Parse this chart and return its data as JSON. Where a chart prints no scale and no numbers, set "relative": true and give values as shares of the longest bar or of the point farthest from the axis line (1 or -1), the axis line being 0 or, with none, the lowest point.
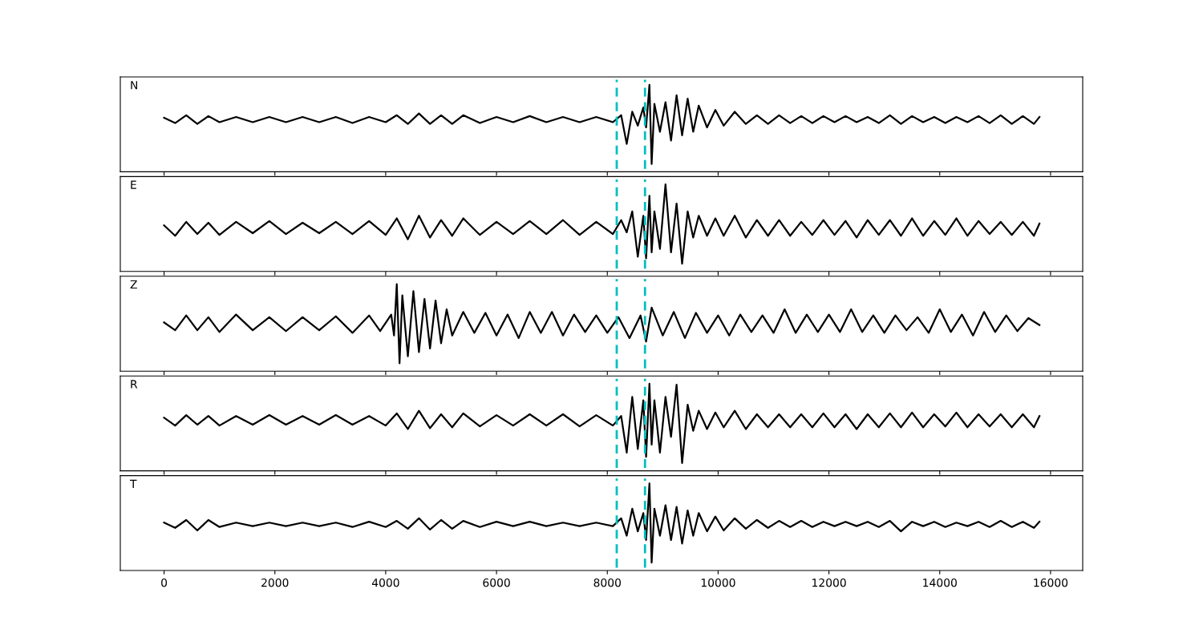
{
  "chart_data": [
    {
      "type": "line",
      "relative": true,
      "xlim": [
        -790,
        16580
      ],
      "xticks": [
        0,
        2000,
        4000,
        6000,
        8000,
        10000,
        12000,
        14000,
        16000
      ],
      "tick_labels": false,
      "grid": false,
      "legend": false,
      "ref_lines": [
        {
          "axis": "x",
          "value": 8170,
          "color": "#00bfbf",
          "line_style": "dashed"
        },
        {
          "axis": "x",
          "value": 8680,
          "color": "#00bfbf",
          "line_style": "dashed"
        }
      ],
      "series": [
        {
          "name": "N",
          "color": "#000000",
          "x": [
            0,
            200,
            400,
            600,
            800,
            1000,
            1300,
            1600,
            1900,
            2200,
            2500,
            2800,
            3100,
            3400,
            3700,
            4000,
            4200,
            4400,
            4600,
            4800,
            5000,
            5200,
            5400,
            5700,
            6000,
            6300,
            6600,
            6900,
            7200,
            7500,
            7800,
            8100,
            8250,
            8350,
            8450,
            8550,
            8650,
            8700,
            8760,
            8800,
            8850,
            8950,
            9050,
            9150,
            9250,
            9350,
            9450,
            9550,
            9650,
            9800,
            9950,
            10100,
            10300,
            10500,
            10700,
            10900,
            11100,
            11300,
            11500,
            11700,
            11900,
            12100,
            12300,
            12500,
            12700,
            12900,
            13100,
            13300,
            13500,
            13700,
            13900,
            14100,
            14300,
            14500,
            14700,
            14900,
            15100,
            15300,
            15500,
            15700,
            15800
          ],
          "values": [
            0.62,
            0.56,
            0.65,
            0.55,
            0.64,
            0.57,
            0.63,
            0.57,
            0.63,
            0.57,
            0.63,
            0.57,
            0.63,
            0.56,
            0.63,
            0.57,
            0.65,
            0.55,
            0.67,
            0.55,
            0.65,
            0.55,
            0.65,
            0.56,
            0.63,
            0.57,
            0.64,
            0.57,
            0.63,
            0.57,
            0.63,
            0.57,
            0.65,
            0.32,
            0.69,
            0.53,
            0.74,
            0.51,
            1.0,
            0.09,
            0.78,
            0.46,
            0.8,
            0.36,
            0.88,
            0.42,
            0.84,
            0.46,
            0.76,
            0.51,
            0.71,
            0.53,
            0.69,
            0.55,
            0.65,
            0.55,
            0.65,
            0.56,
            0.64,
            0.56,
            0.64,
            0.57,
            0.64,
            0.57,
            0.63,
            0.56,
            0.65,
            0.55,
            0.64,
            0.57,
            0.63,
            0.56,
            0.63,
            0.57,
            0.64,
            0.56,
            0.65,
            0.55,
            0.64,
            0.55,
            0.63
          ]
        }
      ]
    },
    {
      "type": "line",
      "relative": true,
      "xlim": [
        -790,
        16580
      ],
      "xticks": [
        0,
        2000,
        4000,
        6000,
        8000,
        10000,
        12000,
        14000,
        16000
      ],
      "tick_labels": false,
      "grid": false,
      "legend": false,
      "ref_lines": [
        {
          "axis": "x",
          "value": 8170,
          "color": "#00bfbf",
          "line_style": "dashed"
        },
        {
          "axis": "x",
          "value": 8680,
          "color": "#00bfbf",
          "line_style": "dashed"
        }
      ],
      "series": [
        {
          "name": "E",
          "color": "#000000",
          "x": [
            0,
            200,
            400,
            600,
            800,
            1000,
            1300,
            1600,
            1900,
            2200,
            2500,
            2800,
            3100,
            3400,
            3700,
            4000,
            4200,
            4400,
            4600,
            4800,
            5000,
            5200,
            5400,
            5700,
            6000,
            6300,
            6600,
            6900,
            7200,
            7500,
            7800,
            8100,
            8250,
            8350,
            8450,
            8550,
            8650,
            8700,
            8760,
            8800,
            8850,
            8950,
            9050,
            9150,
            9250,
            9350,
            9450,
            9550,
            9650,
            9800,
            9950,
            10100,
            10300,
            10500,
            10700,
            10900,
            11100,
            11300,
            11500,
            11700,
            11900,
            12100,
            12300,
            12500,
            12700,
            12900,
            13100,
            13300,
            13500,
            13700,
            13900,
            14100,
            14300,
            14500,
            14700,
            14900,
            15100,
            15300,
            15500,
            15700,
            15800
          ],
          "values": [
            0.53,
            0.41,
            0.57,
            0.43,
            0.56,
            0.42,
            0.57,
            0.44,
            0.58,
            0.43,
            0.56,
            0.44,
            0.57,
            0.43,
            0.58,
            0.42,
            0.61,
            0.37,
            0.64,
            0.39,
            0.59,
            0.41,
            0.61,
            0.42,
            0.57,
            0.43,
            0.58,
            0.43,
            0.59,
            0.42,
            0.57,
            0.43,
            0.59,
            0.45,
            0.69,
            0.17,
            0.64,
            0.15,
            0.87,
            0.22,
            0.69,
            0.26,
            1.0,
            0.22,
            0.78,
            0.09,
            0.69,
            0.39,
            0.64,
            0.41,
            0.61,
            0.41,
            0.64,
            0.39,
            0.59,
            0.41,
            0.59,
            0.41,
            0.57,
            0.42,
            0.59,
            0.42,
            0.58,
            0.39,
            0.59,
            0.42,
            0.59,
            0.41,
            0.61,
            0.41,
            0.58,
            0.42,
            0.61,
            0.41,
            0.58,
            0.43,
            0.57,
            0.42,
            0.57,
            0.41,
            0.55
          ]
        }
      ]
    },
    {
      "type": "line",
      "relative": true,
      "xlim": [
        -790,
        16580
      ],
      "xticks": [
        0,
        2000,
        4000,
        6000,
        8000,
        10000,
        12000,
        14000,
        16000
      ],
      "tick_labels": false,
      "grid": false,
      "legend": false,
      "ref_lines": [
        {
          "axis": "x",
          "value": 8170,
          "color": "#00bfbf",
          "line_style": "dashed"
        },
        {
          "axis": "x",
          "value": 8680,
          "color": "#00bfbf",
          "line_style": "dashed"
        }
      ],
      "series": [
        {
          "name": "Z",
          "color": "#000000",
          "x": [
            0,
            200,
            400,
            600,
            800,
            1000,
            1300,
            1600,
            1900,
            2200,
            2500,
            2800,
            3100,
            3400,
            3700,
            3900,
            4100,
            4150,
            4200,
            4250,
            4300,
            4400,
            4500,
            4600,
            4700,
            4800,
            4900,
            5000,
            5100,
            5200,
            5400,
            5600,
            5800,
            6000,
            6200,
            6400,
            6600,
            6800,
            7000,
            7200,
            7400,
            7600,
            7800,
            8000,
            8200,
            8400,
            8600,
            8700,
            8800,
            9000,
            9200,
            9400,
            9600,
            9800,
            10000,
            10200,
            10400,
            10600,
            10800,
            11000,
            11200,
            11400,
            11600,
            11800,
            12000,
            12200,
            12400,
            12600,
            12800,
            13000,
            13200,
            13400,
            13600,
            13800,
            14000,
            14200,
            14400,
            14600,
            14800,
            15000,
            15200,
            15400,
            15600,
            15800
          ],
          "values": [
            0.56,
            0.47,
            0.64,
            0.47,
            0.62,
            0.45,
            0.65,
            0.47,
            0.62,
            0.46,
            0.62,
            0.47,
            0.63,
            0.44,
            0.64,
            0.46,
            0.65,
            0.41,
            1.0,
            0.09,
            0.87,
            0.17,
            0.92,
            0.22,
            0.83,
            0.26,
            0.81,
            0.32,
            0.71,
            0.41,
            0.68,
            0.44,
            0.67,
            0.41,
            0.65,
            0.38,
            0.68,
            0.44,
            0.68,
            0.41,
            0.65,
            0.45,
            0.64,
            0.44,
            0.62,
            0.38,
            0.64,
            0.34,
            0.73,
            0.41,
            0.68,
            0.38,
            0.67,
            0.44,
            0.64,
            0.41,
            0.65,
            0.45,
            0.64,
            0.44,
            0.71,
            0.44,
            0.65,
            0.45,
            0.65,
            0.45,
            0.71,
            0.45,
            0.64,
            0.44,
            0.64,
            0.47,
            0.62,
            0.44,
            0.71,
            0.45,
            0.65,
            0.41,
            0.68,
            0.45,
            0.64,
            0.46,
            0.61,
            0.53
          ]
        }
      ]
    },
    {
      "type": "line",
      "relative": true,
      "xlim": [
        -790,
        16580
      ],
      "xticks": [
        0,
        2000,
        4000,
        6000,
        8000,
        10000,
        12000,
        14000,
        16000
      ],
      "tick_labels": false,
      "grid": false,
      "legend": false,
      "ref_lines": [
        {
          "axis": "x",
          "value": 8170,
          "color": "#00bfbf",
          "line_style": "dashed"
        },
        {
          "axis": "x",
          "value": 8680,
          "color": "#00bfbf",
          "line_style": "dashed"
        }
      ],
      "series": [
        {
          "name": "R",
          "color": "#000000",
          "x": [
            0,
            200,
            400,
            600,
            800,
            1000,
            1300,
            1600,
            1900,
            2200,
            2500,
            2800,
            3100,
            3400,
            3700,
            4000,
            4200,
            4400,
            4600,
            4800,
            5000,
            5200,
            5400,
            5700,
            6000,
            6300,
            6600,
            6900,
            7200,
            7500,
            7800,
            8100,
            8250,
            8350,
            8450,
            8550,
            8650,
            8700,
            8760,
            8800,
            8850,
            8950,
            9050,
            9150,
            9250,
            9350,
            9450,
            9550,
            9650,
            9800,
            9950,
            10100,
            10300,
            10500,
            10700,
            10900,
            11100,
            11300,
            11500,
            11700,
            11900,
            12100,
            12300,
            12500,
            12700,
            12900,
            13100,
            13300,
            13500,
            13700,
            13900,
            14100,
            14300,
            14500,
            14700,
            14900,
            15100,
            15300,
            15500,
            15700,
            15800
          ],
          "values": [
            0.61,
            0.52,
            0.64,
            0.53,
            0.63,
            0.52,
            0.63,
            0.53,
            0.64,
            0.53,
            0.63,
            0.53,
            0.64,
            0.53,
            0.63,
            0.52,
            0.66,
            0.48,
            0.69,
            0.49,
            0.65,
            0.5,
            0.66,
            0.51,
            0.64,
            0.52,
            0.65,
            0.52,
            0.65,
            0.51,
            0.64,
            0.52,
            0.63,
            0.21,
            0.85,
            0.25,
            0.81,
            0.16,
            1.0,
            0.3,
            0.81,
            0.21,
            0.85,
            0.39,
            0.99,
            0.09,
            0.76,
            0.46,
            0.69,
            0.48,
            0.67,
            0.5,
            0.69,
            0.48,
            0.65,
            0.5,
            0.65,
            0.5,
            0.65,
            0.5,
            0.66,
            0.5,
            0.65,
            0.48,
            0.65,
            0.5,
            0.66,
            0.5,
            0.67,
            0.5,
            0.65,
            0.51,
            0.67,
            0.5,
            0.65,
            0.51,
            0.65,
            0.5,
            0.65,
            0.5,
            0.63
          ]
        }
      ]
    },
    {
      "type": "line",
      "relative": true,
      "xlim": [
        -790,
        16580
      ],
      "xticks": [
        0,
        2000,
        4000,
        6000,
        8000,
        10000,
        12000,
        14000,
        16000
      ],
      "tick_labels": "x",
      "grid": false,
      "legend": false,
      "ref_lines": [
        {
          "axis": "x",
          "value": 8170,
          "color": "#00bfbf",
          "line_style": "dashed"
        },
        {
          "axis": "x",
          "value": 8680,
          "color": "#00bfbf",
          "line_style": "dashed"
        }
      ],
      "series": [
        {
          "name": "T",
          "color": "#000000",
          "x": [
            0,
            200,
            400,
            600,
            800,
            1000,
            1300,
            1600,
            1900,
            2200,
            2500,
            2800,
            3100,
            3400,
            3700,
            4000,
            4200,
            4400,
            4600,
            4800,
            5000,
            5200,
            5400,
            5700,
            6000,
            6300,
            6600,
            6900,
            7200,
            7500,
            7800,
            8100,
            8250,
            8350,
            8450,
            8550,
            8650,
            8700,
            8760,
            8800,
            8850,
            8950,
            9050,
            9150,
            9250,
            9350,
            9450,
            9550,
            9650,
            9800,
            9950,
            10100,
            10300,
            10500,
            10700,
            10900,
            11100,
            11300,
            11500,
            11700,
            11900,
            12100,
            12300,
            12500,
            12700,
            12900,
            13100,
            13300,
            13500,
            13700,
            13900,
            14100,
            14300,
            14500,
            14700,
            14900,
            15100,
            15300,
            15500,
            15700,
            15800
          ],
          "values": [
            0.55,
            0.49,
            0.58,
            0.46,
            0.58,
            0.5,
            0.55,
            0.51,
            0.55,
            0.51,
            0.55,
            0.51,
            0.55,
            0.5,
            0.56,
            0.5,
            0.57,
            0.48,
            0.6,
            0.47,
            0.58,
            0.48,
            0.57,
            0.5,
            0.56,
            0.51,
            0.56,
            0.51,
            0.55,
            0.51,
            0.55,
            0.51,
            0.6,
            0.4,
            0.71,
            0.45,
            0.66,
            0.35,
            1.0,
            0.09,
            0.71,
            0.4,
            0.75,
            0.35,
            0.73,
            0.31,
            0.69,
            0.4,
            0.66,
            0.45,
            0.62,
            0.46,
            0.6,
            0.48,
            0.58,
            0.49,
            0.57,
            0.5,
            0.57,
            0.5,
            0.56,
            0.51,
            0.56,
            0.51,
            0.56,
            0.5,
            0.57,
            0.45,
            0.56,
            0.51,
            0.56,
            0.5,
            0.55,
            0.51,
            0.56,
            0.5,
            0.57,
            0.5,
            0.56,
            0.49,
            0.56
          ]
        }
      ]
    }
  ]
}
